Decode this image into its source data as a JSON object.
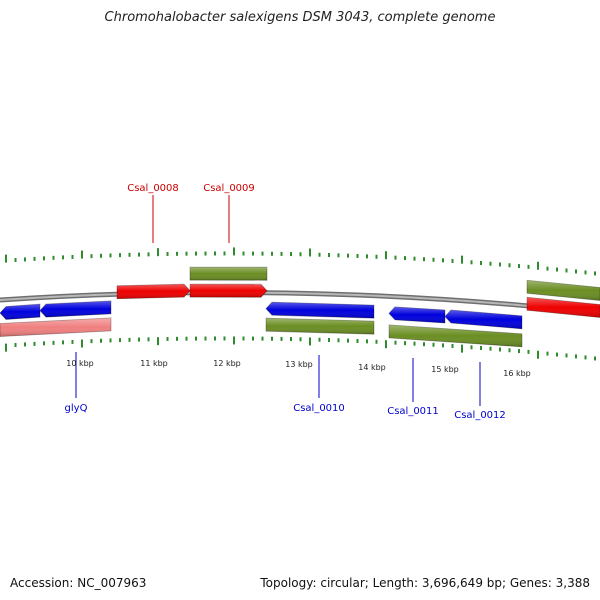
{
  "title": "Chromohalobacter salexigens DSM 3043, complete genome",
  "footer": {
    "accession": "Accession: NC_007963",
    "stats": "Topology: circular; Length: 3,696,649 bp; Genes: 3,388"
  },
  "colors": {
    "forward_gene": "#ee0000",
    "reverse_gene": "#0000dd",
    "forward_cds": "#6b8e23",
    "reverse_cds": "#6b8e23",
    "pale_gene": "#f08080",
    "backbone": "#888888",
    "tick": "#2e8b2e",
    "forward_label": "#cc0000",
    "reverse_label": "#0000cc"
  },
  "scale_labels": [
    "10 kbp",
    "11 kbp",
    "12 kbp",
    "13 kbp",
    "14 kbp",
    "15 kbp",
    "16 kbp"
  ],
  "gene_labels": {
    "forward": [
      "Csal_0008",
      "Csal_0009"
    ],
    "reverse": [
      "glyQ",
      "Csal_0010",
      "Csal_0011",
      "Csal_0012"
    ]
  }
}
